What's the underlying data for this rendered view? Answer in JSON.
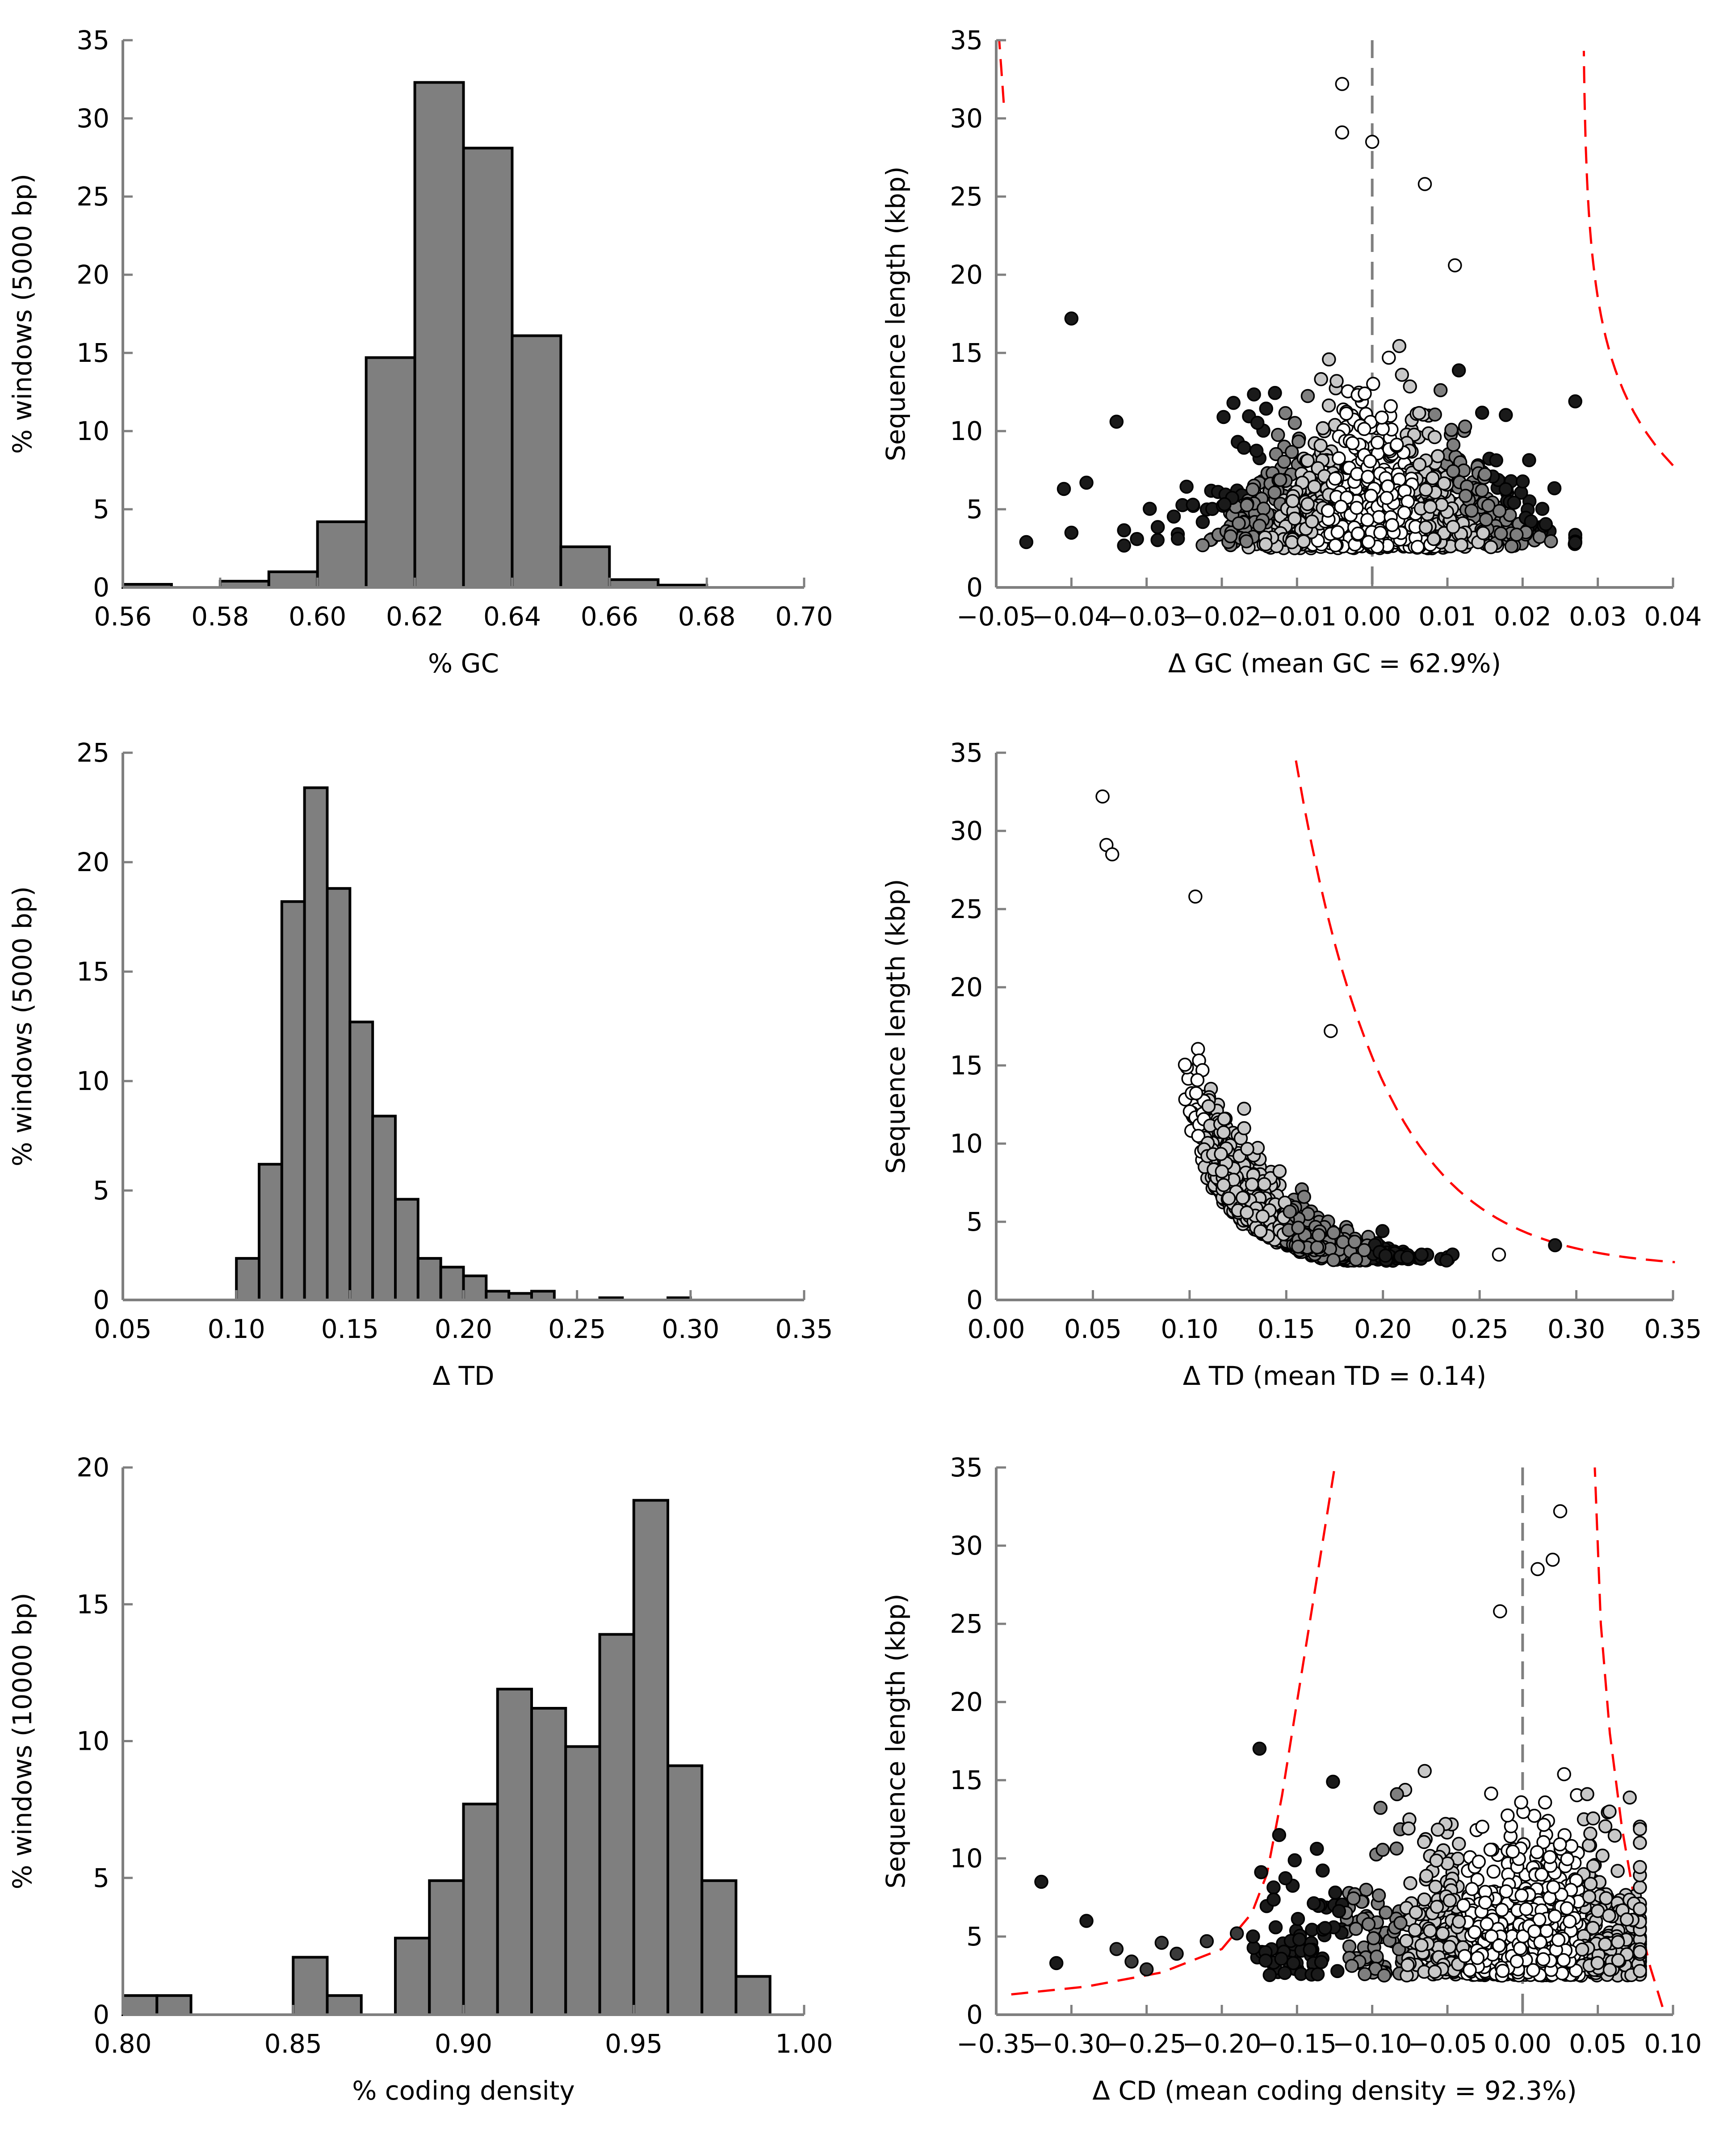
{
  "chart_data": [
    {
      "type": "bar",
      "panel": "gc-histogram",
      "xlabel": "% GC",
      "ylabel": "% windows (5000 bp)",
      "xlim": [
        0.56,
        0.7
      ],
      "ylim": [
        0,
        35
      ],
      "xticks": [
        "0.56",
        "0.58",
        "0.60",
        "0.62",
        "0.64",
        "0.66",
        "0.68",
        "0.70"
      ],
      "yticks": [
        "0",
        "5",
        "10",
        "15",
        "20",
        "25",
        "30",
        "35"
      ],
      "bin_edges": [
        0.56,
        0.57,
        0.58,
        0.59,
        0.6,
        0.61,
        0.62,
        0.63,
        0.64,
        0.65,
        0.66,
        0.67,
        0.68
      ],
      "values": [
        0.2,
        0,
        0.4,
        1.0,
        4.2,
        14.7,
        32.3,
        28.1,
        16.1,
        2.6,
        0.5,
        0.15
      ]
    },
    {
      "type": "scatter",
      "panel": "gc-scatter",
      "xlabel": "Δ GC (mean GC = 62.9%)",
      "ylabel": "Sequence length (kbp)",
      "xlim": [
        -0.05,
        0.04
      ],
      "ylim": [
        0,
        35
      ],
      "xticks": [
        "−0.05",
        "−0.04",
        "−0.03",
        "−0.02",
        "−0.01",
        "0.00",
        "0.01",
        "0.02",
        "0.03",
        "0.04"
      ],
      "yticks": [
        "0",
        "5",
        "10",
        "15",
        "20",
        "25",
        "30",
        "35"
      ],
      "mean_line_x": 0.0,
      "notable_points": [
        [
          -0.046,
          2.9
        ],
        [
          -0.041,
          6.3
        ],
        [
          -0.04,
          3.5
        ],
        [
          -0.04,
          17.2
        ],
        [
          -0.038,
          6.7
        ],
        [
          -0.034,
          10.6
        ],
        [
          -0.004,
          32.2
        ],
        [
          -0.004,
          29.1
        ],
        [
          0.0,
          28.5
        ],
        [
          0.007,
          25.8
        ],
        [
          0.011,
          20.6
        ]
      ],
      "colors": {
        "inner": "#ffffff",
        "mid": "#c8c8c8",
        "outer": "#7f7f7f",
        "extreme": "#1a1a1a",
        "bound": "#ff0000",
        "mean": "#7f7f7f"
      }
    },
    {
      "type": "bar",
      "panel": "td-histogram",
      "xlabel": "Δ TD",
      "ylabel": "% windows (5000 bp)",
      "xlim": [
        0.05,
        0.35
      ],
      "ylim": [
        0,
        25
      ],
      "xticks": [
        "0.05",
        "0.10",
        "0.15",
        "0.20",
        "0.25",
        "0.30",
        "0.35"
      ],
      "yticks": [
        "0",
        "5",
        "10",
        "15",
        "20",
        "25"
      ],
      "bin_edges": [
        0.1,
        0.11,
        0.12,
        0.13,
        0.14,
        0.15,
        0.16,
        0.17,
        0.18,
        0.19,
        0.2,
        0.21,
        0.22,
        0.23,
        0.24,
        0.25,
        0.26,
        0.27,
        0.28,
        0.29,
        0.3
      ],
      "values": [
        1.9,
        6.2,
        18.2,
        23.4,
        18.8,
        12.7,
        8.4,
        4.6,
        1.9,
        1.5,
        1.1,
        0.4,
        0.3,
        0.4,
        0,
        0,
        0.1,
        0,
        0,
        0.1
      ]
    },
    {
      "type": "scatter",
      "panel": "td-scatter",
      "xlabel": "Δ TD (mean TD = 0.14)",
      "ylabel": "Sequence length (kbp)",
      "xlim": [
        0.0,
        0.35
      ],
      "ylim": [
        0,
        35
      ],
      "xticks": [
        "0.00",
        "0.05",
        "0.10",
        "0.15",
        "0.20",
        "0.25",
        "0.30",
        "0.35"
      ],
      "yticks": [
        "0",
        "5",
        "10",
        "15",
        "20",
        "25",
        "30",
        "35"
      ],
      "notable_points": [
        [
          0.055,
          32.2
        ],
        [
          0.057,
          29.1
        ],
        [
          0.06,
          28.5
        ],
        [
          0.103,
          25.8
        ],
        [
          0.173,
          17.2
        ],
        [
          0.289,
          3.5
        ],
        [
          0.26,
          2.9
        ]
      ]
    },
    {
      "type": "bar",
      "panel": "cd-histogram",
      "xlabel": "% coding density",
      "ylabel": "% windows (10000 bp)",
      "xlim": [
        0.8,
        1.0
      ],
      "ylim": [
        0,
        20
      ],
      "xticks": [
        "0.80",
        "0.85",
        "0.90",
        "0.95",
        "1.00"
      ],
      "yticks": [
        "0",
        "5",
        "10",
        "15",
        "20"
      ],
      "bin_edges": [
        0.8,
        0.81,
        0.82,
        0.83,
        0.84,
        0.85,
        0.86,
        0.87,
        0.88,
        0.89,
        0.9,
        0.91,
        0.92,
        0.93,
        0.94,
        0.95,
        0.96,
        0.97,
        0.98,
        0.99
      ],
      "values": [
        0.7,
        0.7,
        0,
        0,
        0,
        2.1,
        0.7,
        0,
        2.8,
        4.9,
        7.7,
        11.9,
        11.2,
        9.8,
        13.9,
        18.8,
        9.1,
        4.9,
        1.4
      ]
    },
    {
      "type": "scatter",
      "panel": "cd-scatter",
      "xlabel": "Δ CD (mean coding density = 92.3%)",
      "ylabel": "Sequence length (kbp)",
      "xlim": [
        -0.35,
        0.1
      ],
      "ylim": [
        0,
        35
      ],
      "xticks": [
        "−0.35",
        "−0.30",
        "−0.25",
        "−0.20",
        "−0.15",
        "−0.10",
        "−0.05",
        "0.00",
        "0.05",
        "0.10"
      ],
      "yticks": [
        "0",
        "5",
        "10",
        "15",
        "20",
        "25",
        "30",
        "35"
      ],
      "mean_line_x": 0.0,
      "notable_points": [
        [
          -0.32,
          8.5
        ],
        [
          -0.29,
          6.0
        ],
        [
          -0.31,
          3.3
        ],
        [
          0.025,
          32.2
        ],
        [
          0.02,
          29.1
        ],
        [
          0.01,
          28.5
        ],
        [
          -0.015,
          25.8
        ]
      ]
    }
  ]
}
